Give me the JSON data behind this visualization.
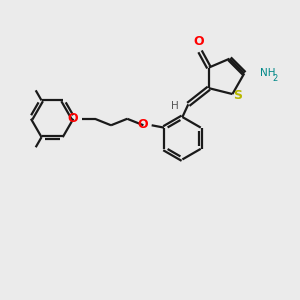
{
  "background_color": "#ebebeb",
  "bond_color": "#1a1a1a",
  "oxygen_color": "#ff0000",
  "sulfur_color": "#b8b800",
  "nitrogen_color": "#0000cc",
  "nh2_color": "#008888",
  "figsize": [
    3.0,
    3.0
  ],
  "dpi": 100,
  "xlim": [
    0,
    10
  ],
  "ylim": [
    0,
    10
  ]
}
